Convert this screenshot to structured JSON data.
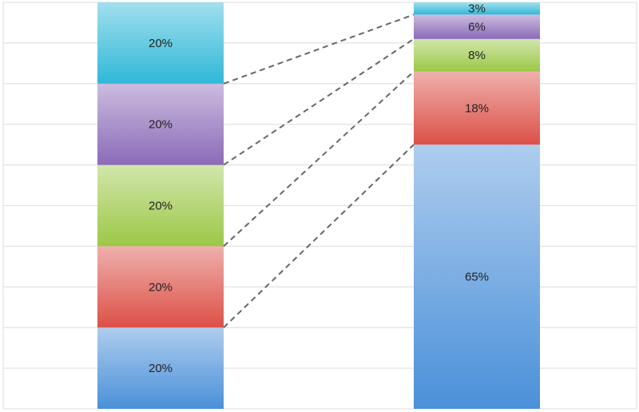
{
  "chart_data": {
    "type": "bar",
    "stacked": true,
    "title": "",
    "xlabel": "",
    "ylabel": "",
    "ylim": [
      0,
      100
    ],
    "grid": true,
    "legend": "none",
    "connectors": "dashed",
    "categories": [
      "",
      ""
    ],
    "series": [
      {
        "color": "#4a90d9",
        "values": [
          20,
          65
        ],
        "labels": [
          "20%",
          "65%"
        ]
      },
      {
        "color": "#dc5047",
        "values": [
          20,
          18
        ],
        "labels": [
          "20%",
          "18%"
        ]
      },
      {
        "color": "#9bc846",
        "values": [
          20,
          8
        ],
        "labels": [
          "20%",
          "8%"
        ]
      },
      {
        "color": "#8b6ab8",
        "values": [
          20,
          6
        ],
        "labels": [
          "20%",
          "6%"
        ]
      },
      {
        "color": "#2fb8d8",
        "values": [
          20,
          3
        ],
        "labels": [
          "20%",
          "3%"
        ]
      }
    ]
  }
}
